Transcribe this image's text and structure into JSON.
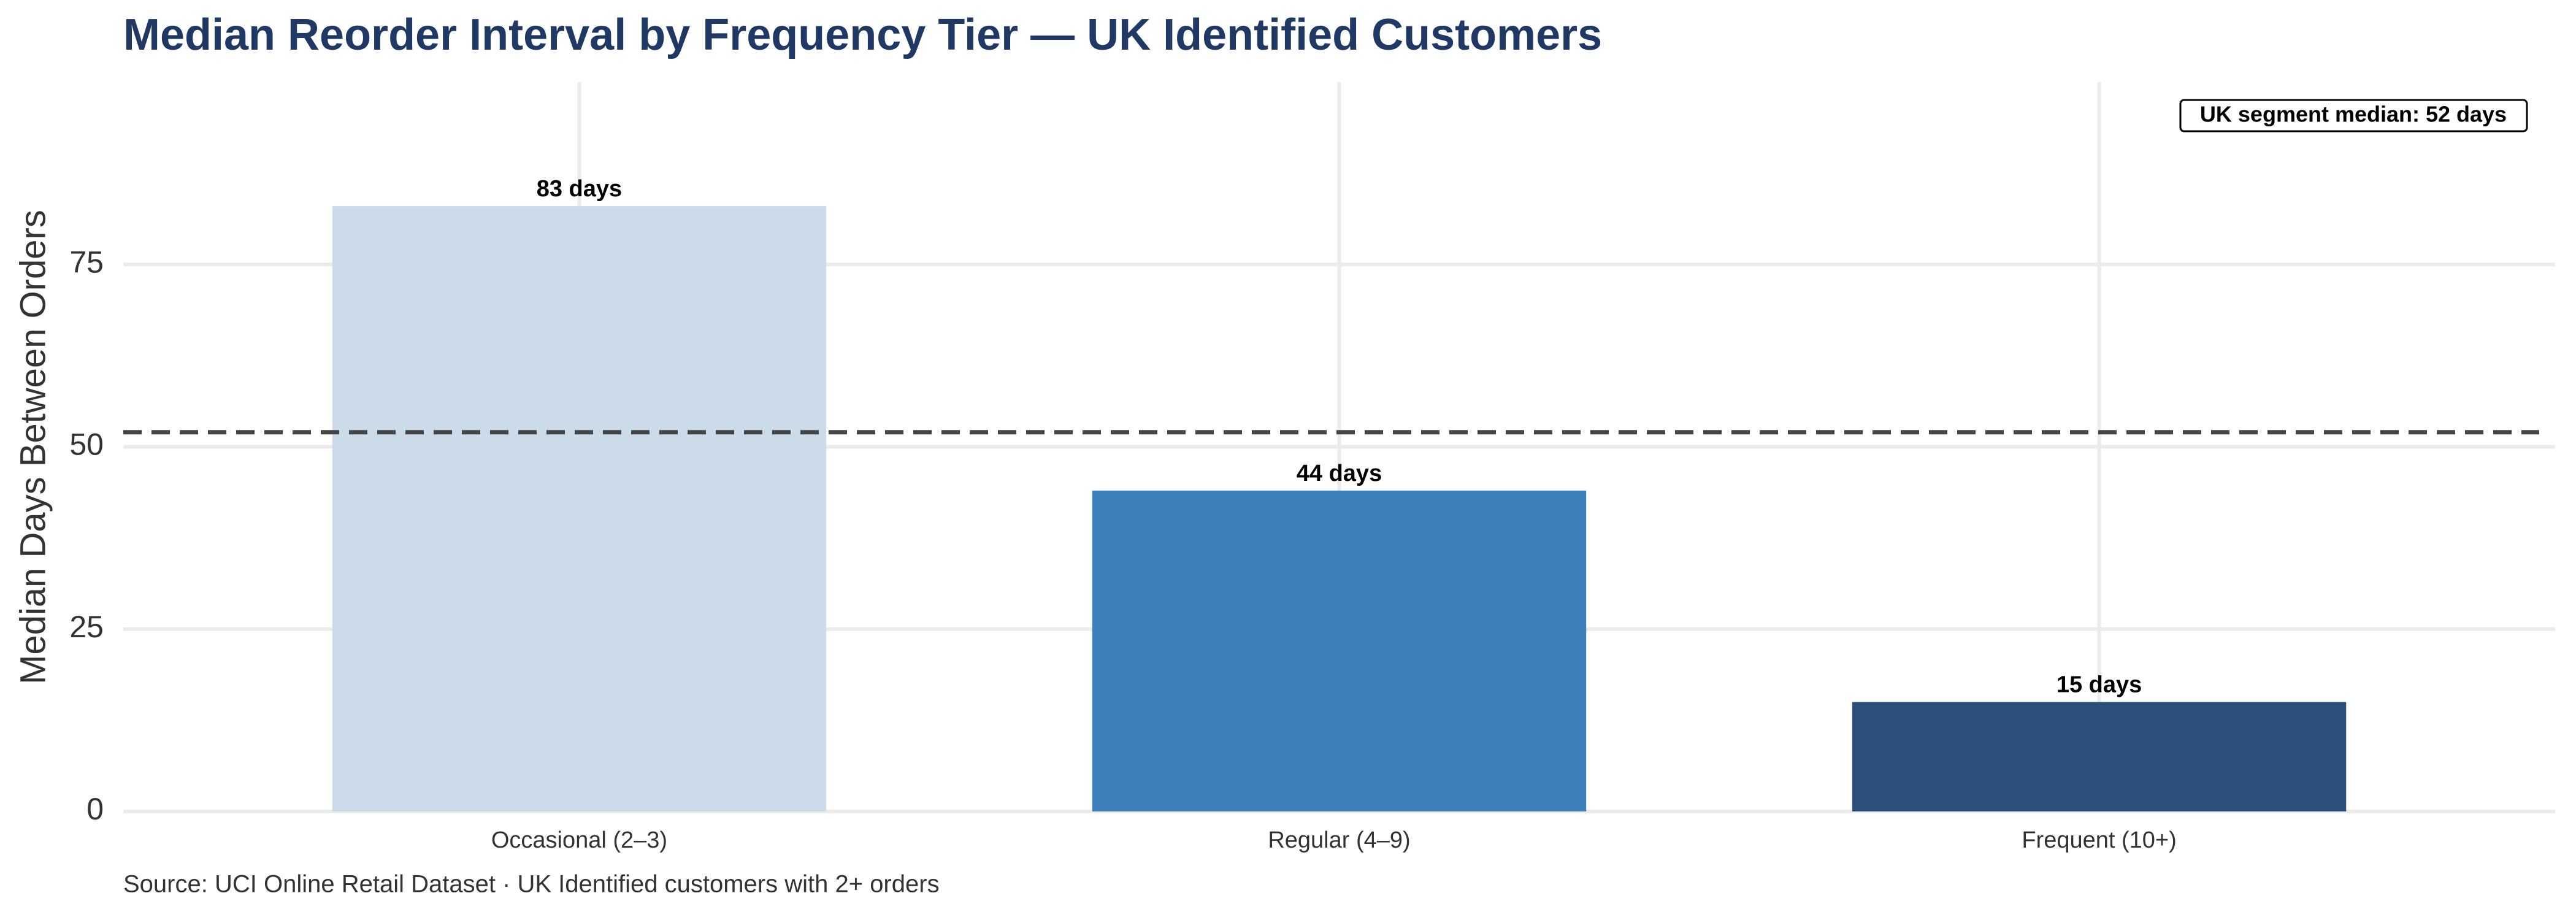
{
  "chart_data": {
    "type": "bar",
    "title": "Median Reorder Interval by Frequency Tier — UK Identified Customers",
    "y_label": "Median Days Between Orders",
    "caption": "Source: UCI Online Retail Dataset · UK Identified customers with 2+ orders",
    "categories": [
      "Occasional (2–3)",
      "Regular (4–9)",
      "Frequent (10+)"
    ],
    "values": [
      83,
      44,
      15
    ],
    "value_labels": [
      "83 days",
      "44 days",
      "15 days"
    ],
    "colors": [
      "#ccdbea",
      "#3d7fbb",
      "#2c4f7c"
    ],
    "ylim": [
      0,
      100
    ],
    "yticks": [
      0,
      25,
      50,
      75
    ],
    "grid": true,
    "reference_line": {
      "value": 52,
      "label": "UK segment median: 52 days"
    }
  }
}
